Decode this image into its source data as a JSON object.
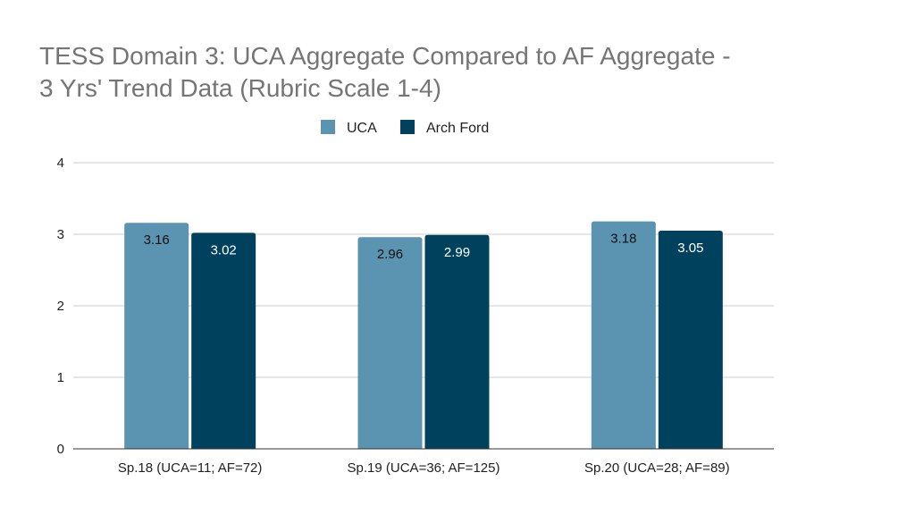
{
  "chart_data": {
    "type": "bar",
    "title_lines": [
      "TESS Domain 3: UCA Aggregate Compared to AF Aggregate -",
      "3 Yrs' Trend Data  (Rubric Scale 1-4)"
    ],
    "categories": [
      "Sp.18 (UCA=11; AF=72)",
      "Sp.19 (UCA=36; AF=125)",
      "Sp.20 (UCA=28; AF=89)"
    ],
    "series": [
      {
        "name": "UCA",
        "values": [
          3.16,
          2.96,
          3.18
        ],
        "labels": [
          "3.16",
          "2.96",
          "3.18"
        ],
        "color": "#5b94b1",
        "label_color": "#111111"
      },
      {
        "name": "Arch Ford",
        "values": [
          3.02,
          2.99,
          3.05
        ],
        "labels": [
          "3.02",
          "2.99",
          "3.05"
        ],
        "color": "#00425e",
        "label_color": "#ffffff"
      }
    ],
    "ylim": [
      0,
      4
    ],
    "yticks": [
      "0",
      "1",
      "2",
      "3",
      "4"
    ],
    "xlabel": "",
    "ylabel": "",
    "grid": true,
    "legend_position": "top-center"
  }
}
